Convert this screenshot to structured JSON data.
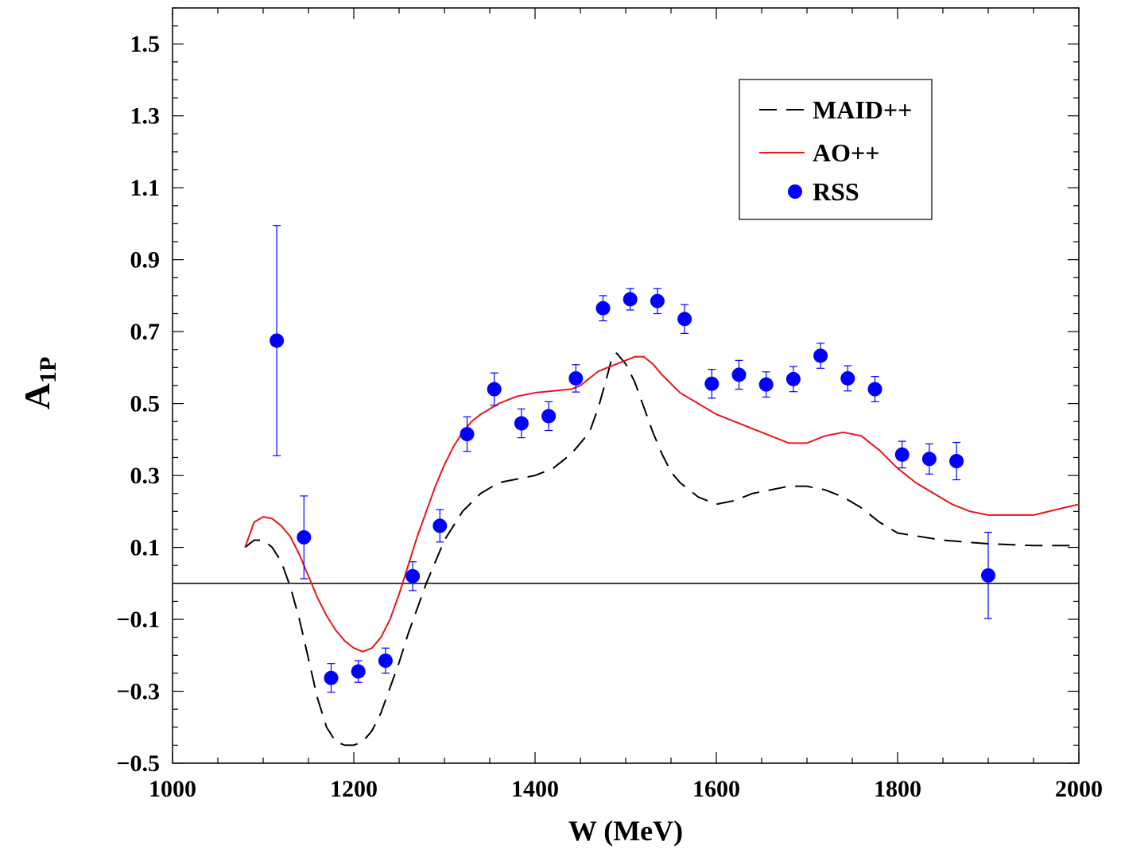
{
  "chart_data": {
    "type": "scatter",
    "xlabel": "W (MeV)",
    "ylabel": "A",
    "ylabel_sub": "1P",
    "xlim": [
      1000,
      2000
    ],
    "ylim": [
      -0.5,
      1.6
    ],
    "x_ticks": [
      1000,
      1200,
      1400,
      1600,
      1800,
      2000
    ],
    "x_tick_labels": [
      "1000",
      "1200",
      "1400",
      "1600",
      "1800",
      "2000"
    ],
    "y_ticks": [
      -0.5,
      -0.3,
      -0.1,
      0.1,
      0.3,
      0.5,
      0.7,
      0.9,
      1.1,
      1.3,
      1.5
    ],
    "y_tick_labels": [
      "−0.5",
      "−0.3",
      "−0.1",
      "0.1",
      "0.3",
      "0.5",
      "0.7",
      "0.9",
      "1.1",
      "1.3",
      "1.5"
    ],
    "reference_line_y": 0.0,
    "grid": false,
    "legend_position": "top-right",
    "series": [
      {
        "name": "MAID++",
        "kind": "line",
        "style": "dashed",
        "color": "#000000",
        "x": [
          1080,
          1090,
          1100,
          1110,
          1120,
          1130,
          1140,
          1150,
          1160,
          1170,
          1180,
          1190,
          1200,
          1210,
          1220,
          1230,
          1240,
          1250,
          1260,
          1270,
          1280,
          1290,
          1300,
          1320,
          1340,
          1360,
          1380,
          1400,
          1420,
          1440,
          1460,
          1470,
          1480,
          1485,
          1490,
          1500,
          1510,
          1520,
          1530,
          1540,
          1550,
          1560,
          1570,
          1580,
          1600,
          1620,
          1640,
          1660,
          1680,
          1700,
          1720,
          1740,
          1760,
          1780,
          1800,
          1850,
          1900,
          1950,
          2000
        ],
        "y": [
          0.1,
          0.12,
          0.12,
          0.1,
          0.06,
          -0.01,
          -0.1,
          -0.21,
          -0.32,
          -0.4,
          -0.44,
          -0.45,
          -0.45,
          -0.44,
          -0.41,
          -0.36,
          -0.29,
          -0.22,
          -0.14,
          -0.07,
          0.0,
          0.06,
          0.12,
          0.2,
          0.25,
          0.28,
          0.29,
          0.3,
          0.32,
          0.36,
          0.42,
          0.49,
          0.58,
          0.63,
          0.64,
          0.61,
          0.56,
          0.49,
          0.42,
          0.36,
          0.31,
          0.28,
          0.26,
          0.24,
          0.22,
          0.23,
          0.25,
          0.26,
          0.27,
          0.27,
          0.26,
          0.24,
          0.21,
          0.17,
          0.14,
          0.12,
          0.11,
          0.105,
          0.105
        ]
      },
      {
        "name": "AO++",
        "kind": "line",
        "style": "solid",
        "color": "#e8141c",
        "x": [
          1080,
          1090,
          1100,
          1110,
          1120,
          1130,
          1140,
          1150,
          1160,
          1170,
          1180,
          1190,
          1200,
          1210,
          1220,
          1230,
          1240,
          1250,
          1260,
          1270,
          1280,
          1290,
          1300,
          1310,
          1320,
          1330,
          1340,
          1360,
          1380,
          1400,
          1420,
          1440,
          1450,
          1460,
          1470,
          1480,
          1490,
          1500,
          1510,
          1520,
          1530,
          1540,
          1560,
          1580,
          1600,
          1620,
          1640,
          1660,
          1680,
          1700,
          1720,
          1740,
          1760,
          1780,
          1800,
          1820,
          1840,
          1860,
          1880,
          1900,
          1950,
          2000
        ],
        "y": [
          0.1,
          0.17,
          0.185,
          0.18,
          0.16,
          0.13,
          0.08,
          0.02,
          -0.04,
          -0.09,
          -0.13,
          -0.16,
          -0.18,
          -0.19,
          -0.18,
          -0.15,
          -0.1,
          -0.03,
          0.05,
          0.13,
          0.2,
          0.27,
          0.33,
          0.38,
          0.42,
          0.45,
          0.47,
          0.5,
          0.52,
          0.53,
          0.535,
          0.54,
          0.55,
          0.57,
          0.59,
          0.6,
          0.61,
          0.62,
          0.63,
          0.63,
          0.61,
          0.58,
          0.53,
          0.5,
          0.47,
          0.45,
          0.43,
          0.41,
          0.39,
          0.39,
          0.41,
          0.42,
          0.41,
          0.37,
          0.32,
          0.28,
          0.25,
          0.22,
          0.2,
          0.19,
          0.19,
          0.22
        ]
      },
      {
        "name": "RSS",
        "kind": "points",
        "color": "#0000ff",
        "x": [
          1115,
          1145,
          1175,
          1205,
          1235,
          1265,
          1295,
          1325,
          1355,
          1385,
          1415,
          1445,
          1475,
          1505,
          1535,
          1565,
          1595,
          1625,
          1655,
          1685,
          1715,
          1745,
          1775,
          1805,
          1835,
          1865,
          1900
        ],
        "y": [
          0.675,
          0.128,
          -0.263,
          -0.245,
          -0.215,
          0.02,
          0.16,
          0.415,
          0.54,
          0.445,
          0.465,
          0.57,
          0.765,
          0.79,
          0.785,
          0.735,
          0.555,
          0.58,
          0.553,
          0.568,
          0.633,
          0.57,
          0.54,
          0.358,
          0.346,
          0.34,
          0.022
        ],
        "err": [
          0.32,
          0.115,
          0.04,
          0.03,
          0.035,
          0.04,
          0.045,
          0.048,
          0.045,
          0.04,
          0.04,
          0.038,
          0.035,
          0.03,
          0.035,
          0.04,
          0.04,
          0.04,
          0.035,
          0.035,
          0.035,
          0.035,
          0.035,
          0.037,
          0.042,
          0.052,
          0.12
        ]
      }
    ]
  }
}
